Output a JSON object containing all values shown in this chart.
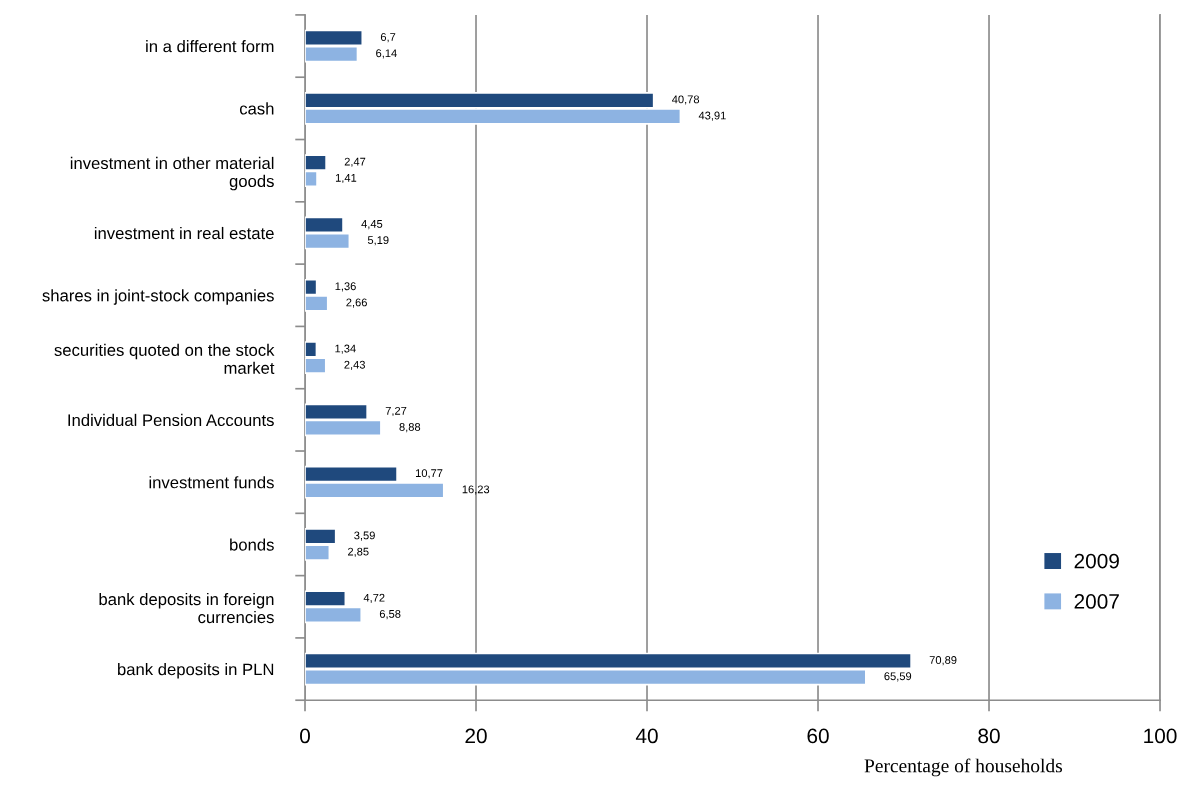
{
  "chart_data": {
    "type": "bar",
    "orientation": "horizontal",
    "categories": [
      "in a different form",
      "cash",
      "investment in other material\ngoods",
      "investment in real estate",
      "shares in joint-stock companies",
      "securities quoted on the stock\nmarket",
      "Individual Pension Accounts",
      "investment funds",
      "bonds",
      "bank deposits in foreign\ncurrencies",
      "bank deposits in PLN"
    ],
    "series": [
      {
        "name": "2009",
        "color": "#1f497d",
        "values": [
          6.7,
          40.78,
          2.47,
          4.45,
          1.36,
          1.34,
          7.27,
          10.77,
          3.59,
          4.72,
          70.89
        ],
        "value_labels": [
          "6,7",
          "40,78",
          "2,47",
          "4,45",
          "1,36",
          "1,34",
          "7,27",
          "10,77",
          "3,59",
          "4,72",
          "70,89"
        ]
      },
      {
        "name": "2007",
        "color": "#8db3e2",
        "values": [
          6.14,
          43.91,
          1.41,
          5.19,
          2.66,
          2.43,
          8.88,
          16.23,
          2.85,
          6.58,
          65.59
        ],
        "value_labels": [
          "6,14",
          "43,91",
          "1,41",
          "5,19",
          "2,66",
          "2,43",
          "8,88",
          "16,23",
          "2,85",
          "6,58",
          "65,59"
        ]
      }
    ],
    "xlabel": "Percentage of households",
    "xlim": [
      0,
      100
    ],
    "xticks": [
      0,
      20,
      40,
      60,
      80,
      100
    ],
    "grid": "x",
    "legend": "bottom right"
  }
}
